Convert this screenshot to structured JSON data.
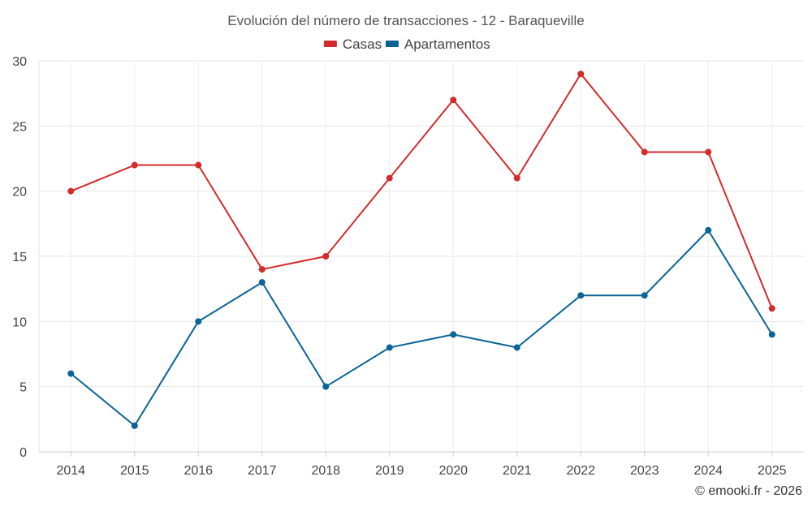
{
  "chart_data": {
    "type": "line",
    "title": "Evolución del número de transacciones - 12 - Baraqueville",
    "xlabel": "",
    "ylabel": "",
    "categories": [
      "2014",
      "2015",
      "2016",
      "2017",
      "2018",
      "2019",
      "2020",
      "2021",
      "2022",
      "2023",
      "2024",
      "2025"
    ],
    "ylim": [
      0,
      30
    ],
    "yticks": [
      0,
      5,
      10,
      15,
      20,
      25,
      30
    ],
    "grid": true,
    "legend_position": "top-center",
    "series": [
      {
        "name": "Casas",
        "color": "#d32b2b",
        "values": [
          20,
          22,
          22,
          14,
          15,
          21,
          27,
          21,
          29,
          23,
          23,
          11
        ]
      },
      {
        "name": "Apartamentos",
        "color": "#0b6496",
        "values": [
          6,
          2,
          10,
          13,
          5,
          8,
          9,
          8,
          12,
          12,
          17,
          9
        ]
      }
    ],
    "credit": "© emooki.fr - 2026"
  }
}
